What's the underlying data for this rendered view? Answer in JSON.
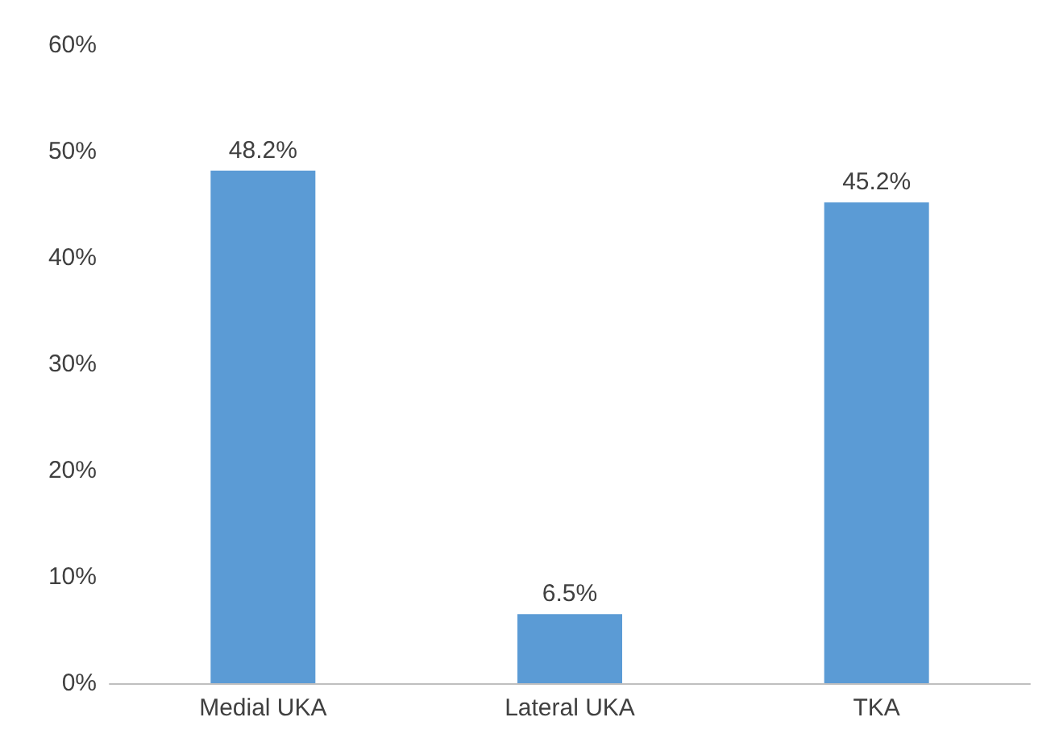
{
  "chart_data": {
    "type": "bar",
    "categories": [
      "Medial UKA",
      "Lateral UKA",
      "TKA"
    ],
    "values": [
      48.2,
      6.5,
      45.2
    ],
    "value_labels": [
      "48.2%",
      "6.5%",
      "45.2%"
    ],
    "color": "#5b9bd5",
    "ylim": [
      0,
      60
    ],
    "yticks": [
      {
        "value": 0,
        "label": "0%"
      },
      {
        "value": 10,
        "label": "10%"
      },
      {
        "value": 20,
        "label": "20%"
      },
      {
        "value": 30,
        "label": "30%"
      },
      {
        "value": 40,
        "label": "40%"
      },
      {
        "value": 50,
        "label": "50%"
      },
      {
        "value": 60,
        "label": "60%"
      }
    ],
    "grid": false
  }
}
